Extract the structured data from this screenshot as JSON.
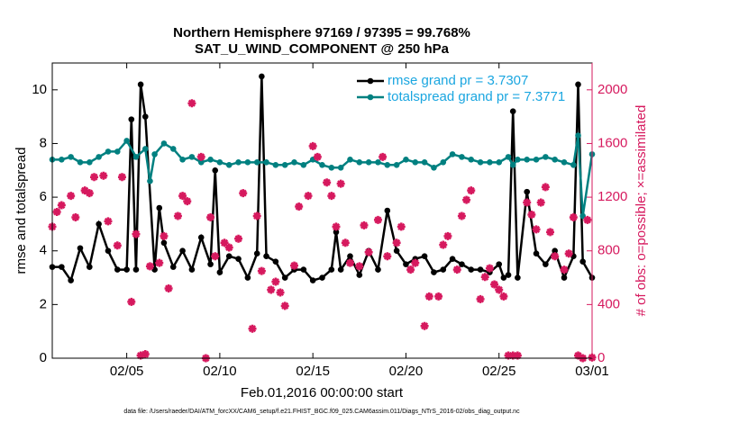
{
  "chart_data": {
    "type": "line",
    "title": [
      "Northern Hemisphere 97169 / 97395 = 99.768%",
      "SAT_U_WIND_COMPONENT @ 250 hPa"
    ],
    "xlabel": "Feb.01,2016 00:00:00 start",
    "ylabel": "rmse and totalspread",
    "y2label": "# of obs: o=possible; ×=assimilated",
    "footer": "data file: /Users/raeder/DAI/ATM_forcXX/CAM6_setup/f.e21.FHIST_BGC.f09_025.CAM6assim.011/Diags_NTrS_2016-02/obs_diag_output.nc",
    "xlim": [
      0,
      29
    ],
    "xticks": [
      {
        "value": 4,
        "label": "02/05"
      },
      {
        "value": 9,
        "label": "02/10"
      },
      {
        "value": 14,
        "label": "02/15"
      },
      {
        "value": 19,
        "label": "02/20"
      },
      {
        "value": 24,
        "label": "02/25"
      },
      {
        "value": 29,
        "label": "03/01"
      }
    ],
    "ylim": [
      0,
      11
    ],
    "yticks": [
      0,
      2,
      4,
      6,
      8,
      10
    ],
    "y2lim": [
      0,
      2200
    ],
    "y2ticks": [
      0,
      400,
      800,
      1200,
      1600,
      2000
    ],
    "y2_color": "#d6195e",
    "legend_position": "upper right",
    "legend_text_color": "#1aa6e0",
    "series": [
      {
        "name": "rmse grand pr = 3.7307",
        "color": "#000000",
        "x": [
          0,
          0.5,
          1,
          1.5,
          2,
          2.5,
          3,
          3.5,
          4,
          4.25,
          4.5,
          4.75,
          5,
          5.5,
          5.75,
          6,
          6.5,
          7,
          7.5,
          8,
          8.5,
          8.75,
          9,
          9.5,
          10,
          10.5,
          11,
          11.25,
          11.5,
          12,
          12.5,
          13,
          13.5,
          14,
          14.5,
          15,
          15.25,
          15.5,
          16,
          16.5,
          17,
          17.5,
          18,
          18.5,
          19,
          19.5,
          20,
          20.5,
          21,
          21.5,
          22,
          22.5,
          23,
          23.5,
          24,
          24.25,
          24.5,
          24.75,
          25,
          25.5,
          26,
          26.5,
          27,
          27.5,
          28,
          28.25,
          28.5,
          29
        ],
        "values": [
          3.4,
          3.4,
          2.9,
          4.1,
          3.4,
          5.0,
          4.0,
          3.3,
          3.3,
          8.9,
          3.3,
          10.2,
          9.0,
          3.3,
          5.6,
          4.3,
          3.4,
          4.0,
          3.3,
          4.5,
          3.5,
          7.0,
          3.2,
          3.8,
          3.7,
          3.0,
          3.9,
          10.5,
          3.8,
          3.6,
          3.0,
          3.3,
          3.3,
          2.9,
          3.0,
          3.3,
          4.7,
          3.3,
          3.8,
          3.1,
          4.0,
          3.3,
          5.5,
          4.0,
          3.5,
          3.7,
          3.8,
          3.2,
          3.3,
          3.7,
          3.5,
          3.3,
          3.3,
          3.2,
          3.5,
          3.0,
          3.1,
          9.2,
          3.0,
          6.2,
          3.9,
          3.5,
          4.0,
          3.0,
          3.8,
          10.2,
          3.6,
          3.0
        ]
      },
      {
        "name": "totalspread grand pr = 7.3771",
        "color": "#008080",
        "x": [
          0,
          0.5,
          1,
          1.5,
          2,
          2.5,
          3,
          3.5,
          4,
          4.5,
          5,
          5.25,
          5.5,
          6,
          6.5,
          7,
          7.5,
          8,
          8.5,
          9,
          9.5,
          10,
          10.5,
          11,
          11.5,
          12,
          12.5,
          13,
          13.5,
          14,
          14.5,
          15,
          15.5,
          16,
          16.5,
          17,
          17.5,
          18,
          18.5,
          19,
          19.5,
          20,
          20.5,
          21,
          21.5,
          22,
          22.5,
          23,
          23.5,
          24,
          24.5,
          24.75,
          25,
          25.5,
          26,
          26.5,
          27,
          27.5,
          28,
          28.25,
          28.5,
          29
        ],
        "values": [
          7.4,
          7.4,
          7.5,
          7.3,
          7.3,
          7.5,
          7.7,
          7.7,
          8.1,
          7.5,
          7.8,
          6.6,
          7.6,
          8.0,
          7.8,
          7.4,
          7.5,
          7.3,
          7.4,
          7.3,
          7.2,
          7.3,
          7.3,
          7.3,
          7.3,
          7.2,
          7.2,
          7.3,
          7.2,
          7.4,
          7.2,
          7.1,
          7.1,
          7.4,
          7.3,
          7.3,
          7.3,
          7.2,
          7.2,
          7.4,
          7.3,
          7.3,
          7.1,
          7.3,
          7.6,
          7.5,
          7.4,
          7.3,
          7.3,
          7.3,
          7.5,
          7.2,
          7.4,
          7.4,
          7.4,
          7.5,
          7.4,
          7.3,
          7.2,
          8.3,
          5.3,
          7.6
        ]
      },
      {
        "color": "#d6195e",
        "axis": "y2",
        "marker": "asterisk",
        "x": [
          0,
          0.25,
          0.5,
          1,
          1.25,
          1.75,
          2,
          2.25,
          2.75,
          3,
          3.5,
          3.75,
          4.25,
          4.5,
          4.75,
          5,
          5.25,
          5.75,
          6,
          6.25,
          6.75,
          7,
          7.25,
          7.5,
          8,
          8.25,
          8.5,
          8.75,
          9.25,
          9.5,
          10,
          10.25,
          10.75,
          11,
          11.25,
          11.75,
          12,
          12.25,
          12.5,
          13,
          13.25,
          13.75,
          14,
          14.25,
          14.75,
          15,
          15.25,
          15.5,
          15.75,
          16,
          16.5,
          16.75,
          17,
          17.5,
          17.75,
          18,
          18.5,
          18.75,
          19.25,
          19.5,
          20,
          20.25,
          20.75,
          21,
          21.25,
          21.75,
          22,
          22.25,
          22.5,
          23,
          23.25,
          23.5,
          23.75,
          24,
          24.25,
          24.5,
          24.75,
          25,
          25.5,
          25.75,
          26,
          26.25,
          26.5,
          26.75,
          27,
          27.5,
          27.75,
          28,
          28.25,
          28.5,
          28.75,
          29
        ],
        "values": [
          980,
          1090,
          1140,
          1210,
          1050,
          1250,
          1230,
          1350,
          1360,
          1020,
          840,
          1350,
          420,
          925,
          20,
          30,
          685,
          710,
          910,
          520,
          1060,
          1210,
          1170,
          1900,
          1500,
          0,
          1050,
          760,
          860,
          825,
          890,
          1230,
          220,
          1060,
          650,
          510,
          570,
          490,
          390,
          690,
          1130,
          1210,
          1580,
          1500,
          1310,
          1210,
          980,
          1300,
          860,
          710,
          685,
          990,
          790,
          1030,
          1500,
          760,
          860,
          980,
          660,
          710,
          240,
          460,
          460,
          845,
          910,
          660,
          1060,
          1180,
          1250,
          440,
          605,
          670,
          550,
          510,
          460,
          20,
          20,
          20,
          1160,
          1070,
          960,
          1160,
          1275,
          940,
          760,
          660,
          780,
          1050,
          20,
          0,
          1030,
          5
        ]
      }
    ]
  }
}
